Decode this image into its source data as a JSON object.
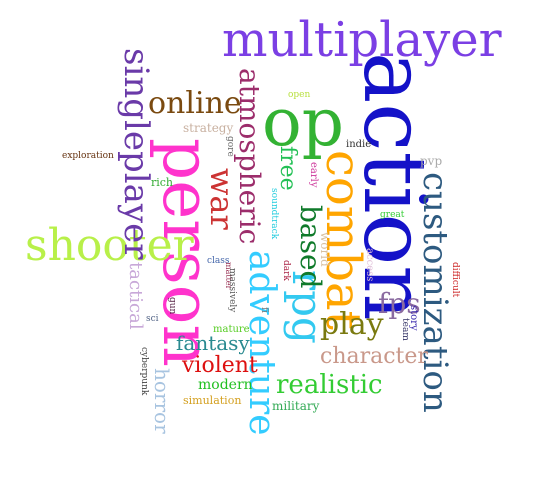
{
  "words": [
    {
      "text": "multiplayer",
      "color": "#7b3fe4"
    },
    {
      "text": "action",
      "color": "#1412c8"
    },
    {
      "text": "op",
      "color": "#33b233"
    },
    {
      "text": "person",
      "color": "#ff33cc"
    },
    {
      "text": "shooter",
      "color": "#b8f049"
    },
    {
      "text": "combat",
      "color": "#ffa500"
    },
    {
      "text": "customization",
      "color": "#2d5a80"
    },
    {
      "text": "adventure",
      "color": "#33ccff"
    },
    {
      "text": "rpg",
      "color": "#33c9f0"
    },
    {
      "text": "singleplayer",
      "color": "#6a3aa8"
    },
    {
      "text": "atmospheric",
      "color": "#9c2d6b"
    },
    {
      "text": "online",
      "color": "#7a4a10"
    },
    {
      "text": "war",
      "color": "#cc3333"
    },
    {
      "text": "based",
      "color": "#0f7a2a"
    },
    {
      "text": "free",
      "color": "#22c055"
    },
    {
      "text": "play",
      "color": "#7a7a10"
    },
    {
      "text": "fps",
      "color": "#8a6aa0"
    },
    {
      "text": "realistic",
      "color": "#33cc33"
    },
    {
      "text": "character",
      "color": "#c9988a"
    },
    {
      "text": "violent",
      "color": "#dd1010"
    },
    {
      "text": "fantasy",
      "color": "#2a8a90"
    },
    {
      "text": "horror",
      "color": "#a8c4e0"
    },
    {
      "text": "tactical",
      "color": "#c8a8d8"
    },
    {
      "text": "modern",
      "color": "#22c022"
    },
    {
      "text": "military",
      "color": "#33aa55"
    },
    {
      "text": "simulation",
      "color": "#d4a020"
    },
    {
      "text": "strategy",
      "color": "#c8b0a0"
    },
    {
      "text": "exploration",
      "color": "#663311"
    },
    {
      "text": "rich",
      "color": "#33aa33"
    },
    {
      "text": "gore",
      "color": "#666666"
    },
    {
      "text": "open",
      "color": "#b8e040"
    },
    {
      "text": "indie",
      "color": "#333333"
    },
    {
      "text": "pvp",
      "color": "#aaaaaa"
    },
    {
      "text": "early",
      "color": "#cc3399"
    },
    {
      "text": "soundtrack",
      "color": "#22ccdd"
    },
    {
      "text": "world",
      "color": "#d8c0a0"
    },
    {
      "text": "great",
      "color": "#33cc33"
    },
    {
      "text": "access",
      "color": "#e0c0d8"
    },
    {
      "text": "story",
      "color": "#3322aa"
    },
    {
      "text": "team",
      "color": "#333366"
    },
    {
      "text": "difficult",
      "color": "#cc2222"
    },
    {
      "text": "dark",
      "color": "#aa2244"
    },
    {
      "text": "class",
      "color": "#4466aa"
    },
    {
      "text": "matter",
      "color": "#993355"
    },
    {
      "text": "massively",
      "color": "#555555"
    },
    {
      "text": "fi",
      "color": "#777777"
    },
    {
      "text": "gun",
      "color": "#552244"
    },
    {
      "text": "sci",
      "color": "#556688"
    },
    {
      "text": "mature",
      "color": "#55cc22"
    },
    {
      "text": "cyberpunk",
      "color": "#444444"
    }
  ]
}
